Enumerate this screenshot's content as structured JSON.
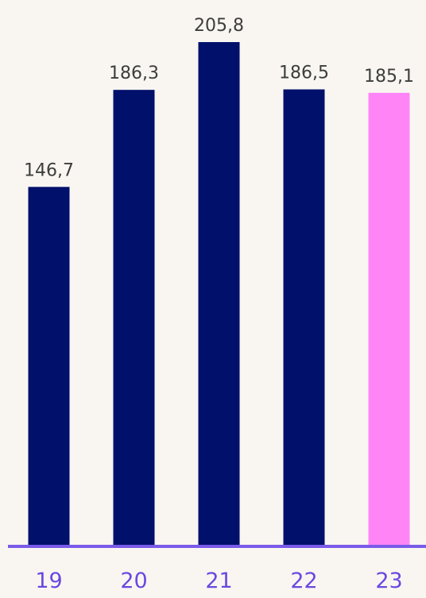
{
  "chart_data": {
    "type": "bar",
    "categories": [
      "19",
      "20",
      "21",
      "22",
      "23"
    ],
    "values": [
      146.7,
      186.3,
      205.8,
      186.5,
      185.1
    ],
    "value_labels": [
      "146,7",
      "186,3",
      "205,8",
      "186,5",
      "185,1"
    ],
    "highlighted_category": "23",
    "title": "",
    "xlabel": "",
    "ylabel": "",
    "ylim": [
      0,
      205.8
    ],
    "grid": false,
    "legend": "none"
  },
  "colors": {
    "background": "#f9f6f1",
    "bar": "#00106b",
    "bar_highlight": "#ff85f7",
    "axis": "#7a5be8",
    "tick_label": "#6a48e0",
    "value_label": "#3d3d3d"
  }
}
